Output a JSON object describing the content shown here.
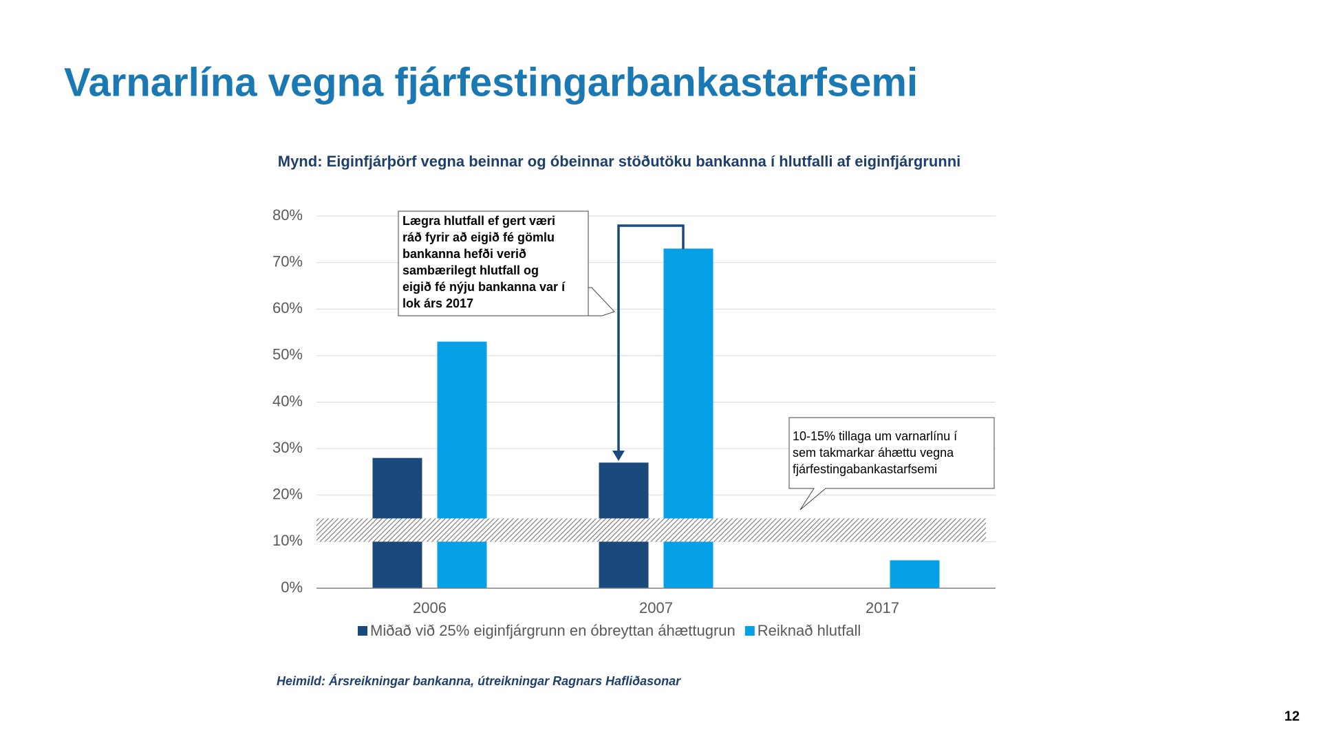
{
  "slide_title": "Varnarlína vegna fjárfestingarbankastarfsemi",
  "chart_data": {
    "type": "bar",
    "title": "Mynd: Eiginfjárþörf vegna beinnar og óbeinnar stöðutöku bankanna í hlutfalli af eiginfjárgrunni",
    "categories": [
      "2006",
      "2007",
      "2017"
    ],
    "series": [
      {
        "name": "Miðað við 25% eiginfjárgrunn en óbreyttan áhættugrun",
        "color": "#1a4a7c",
        "values": [
          28,
          27,
          null
        ]
      },
      {
        "name": "Reiknað hlutfall",
        "color": "#05a0e6",
        "values": [
          53,
          73,
          6
        ]
      }
    ],
    "ylim": [
      0,
      80
    ],
    "yticks": [
      {
        "value": 0,
        "label": "0%"
      },
      {
        "value": 10,
        "label": "10%"
      },
      {
        "value": 20,
        "label": "20%"
      },
      {
        "value": 30,
        "label": "30%"
      },
      {
        "value": 40,
        "label": "40%"
      },
      {
        "value": 50,
        "label": "50%"
      },
      {
        "value": 60,
        "label": "60%"
      },
      {
        "value": 70,
        "label": "70%"
      },
      {
        "value": 80,
        "label": "80%"
      }
    ],
    "grid": true,
    "band": [
      10,
      15
    ],
    "annotations": [
      [
        "Lægra hlutfall ef gert væri",
        "ráð fyrir að eigið fé gömlu",
        "bankanna hefði verið",
        "sambærilegt hlutfall og",
        "eigið fé nýju bankanna var í",
        "lok árs 2017"
      ],
      [
        "10-15% tillaga um varnarlínu í",
        "sem takmarkar áhættu vegna",
        "fjárfestingabankastarfsemi"
      ]
    ]
  },
  "source": "Heimild: Ársreikningar bankanna, útreikningar Ragnars Hafliðasonar",
  "page_number": "12"
}
